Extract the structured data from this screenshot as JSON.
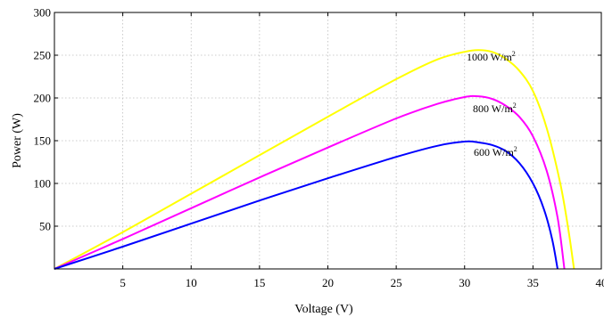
{
  "chart_data": {
    "type": "line",
    "title": "",
    "xlabel": "Voltage (V)",
    "ylabel": "Power (W)",
    "xlim": [
      0,
      40
    ],
    "ylim": [
      0,
      300
    ],
    "xticks": [
      5,
      10,
      15,
      20,
      25,
      30,
      35,
      40
    ],
    "yticks": [
      50,
      100,
      150,
      200,
      250,
      300
    ],
    "grid": true,
    "series": [
      {
        "label_text": "1000 W/m",
        "label_sup": "2",
        "color": "#ffff00",
        "x": [
          0,
          5,
          10,
          15,
          20,
          25,
          28,
          30,
          31,
          32,
          33,
          34,
          35,
          36,
          37,
          37.6,
          38.0
        ],
        "y": [
          0,
          43,
          88,
          133,
          178,
          222,
          245,
          254,
          256,
          254,
          246,
          232,
          208,
          165,
          100,
          45,
          0
        ]
      },
      {
        "label_text": "800 W/m",
        "label_sup": "2",
        "color": "#ff00ff",
        "x": [
          0,
          5,
          10,
          15,
          20,
          25,
          28,
          30,
          31,
          32,
          33,
          34,
          35,
          36,
          36.8,
          37.3
        ],
        "y": [
          0,
          35,
          71,
          107,
          142,
          176,
          193,
          201,
          202,
          199,
          191,
          178,
          155,
          115,
          60,
          0
        ]
      },
      {
        "label_text": "600 W/m",
        "label_sup": "2",
        "color": "#0000ff",
        "x": [
          0,
          5,
          10,
          15,
          20,
          25,
          28,
          30,
          31,
          32,
          33,
          34,
          35,
          35.8,
          36.4,
          36.8
        ],
        "y": [
          0,
          26,
          53,
          80,
          106,
          131,
          144,
          149,
          148,
          145,
          138,
          124,
          100,
          70,
          35,
          0
        ]
      }
    ]
  }
}
